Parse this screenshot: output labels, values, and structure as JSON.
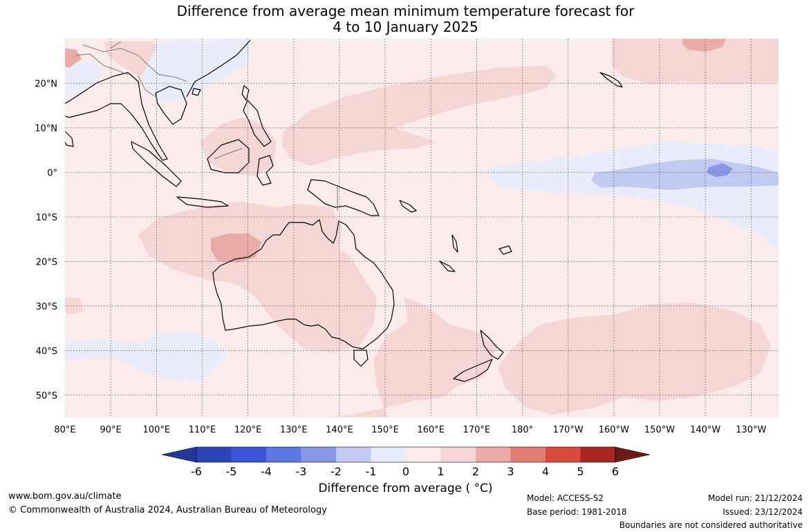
{
  "title": {
    "line1": "Difference from average mean minimum temperature forecast for",
    "line2": "4 to 10 January 2025"
  },
  "map": {
    "lon_labels": [
      "80°E",
      "90°E",
      "100°E",
      "110°E",
      "120°E",
      "130°E",
      "140°E",
      "150°E",
      "160°E",
      "170°E",
      "180°",
      "170°W",
      "160°W",
      "150°W",
      "140°W",
      "130°W"
    ],
    "lat_labels": [
      "20°N",
      "10°N",
      "0°",
      "10°S",
      "20°S",
      "30°S",
      "40°S",
      "50°S"
    ],
    "lon_range": [
      80,
      236
    ],
    "lat_range": [
      -55,
      30
    ],
    "grid": "dotted",
    "background_anomaly_class": "0 to 1",
    "colors": {
      "background": "#fbebea",
      "warm_1_2": "#f4d6d4",
      "warm_2_3": "#eaaaa6",
      "cool_0_m1": "#e8ecfb",
      "cool_m1_m2": "#c3caf2",
      "cool_m2_m3": "#8897e6",
      "coastline": "#000000",
      "borders": "#7a7a7a"
    }
  },
  "colorbar": {
    "ticks": [
      "-6",
      "-5",
      "-4",
      "-3",
      "-2",
      "-1",
      "0",
      "1",
      "2",
      "3",
      "4",
      "5",
      "6"
    ],
    "colors": [
      "#23399a",
      "#2a44b8",
      "#3a55d8",
      "#5f77e0",
      "#8897e6",
      "#c3caf2",
      "#e8ecfb",
      "#fbebea",
      "#f4d6d4",
      "#eaaaa6",
      "#e07e74",
      "#d84a3e",
      "#a8261f",
      "#6e1a16"
    ],
    "label": "Difference from average ( °C)"
  },
  "footer": {
    "website": "www.bom.gov.au/climate",
    "copyright": "© Commonwealth of Australia 2024, Australian Bureau of Meteorology",
    "model": "Model: ACCESS-S2",
    "base_period": "Base period: 1981-2018",
    "model_run": "Model run: 21/12/2024",
    "issued": "Issued: 23/12/2024",
    "disclaimer": "Boundaries are not considered authoritative"
  }
}
